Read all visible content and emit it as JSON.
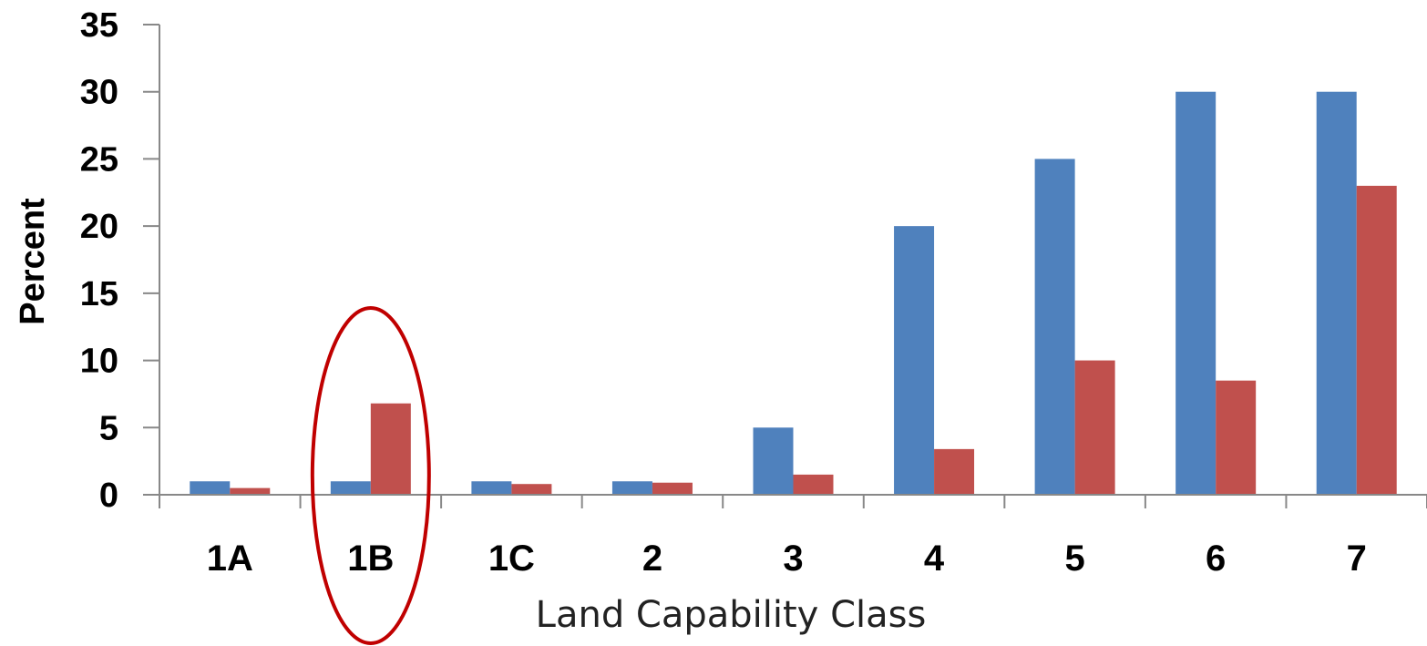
{
  "chart_data": {
    "type": "bar",
    "title": "",
    "xlabel": "Land Capability Class",
    "ylabel": "Percent",
    "categories": [
      "1A",
      "1B",
      "1C",
      "2",
      "3",
      "4",
      "5",
      "6",
      "7"
    ],
    "series": [
      {
        "values": [
          1,
          1,
          1,
          1,
          5,
          20,
          25,
          30,
          30
        ],
        "color": "#4f81bd"
      },
      {
        "values": [
          0.5,
          6.8,
          0.8,
          0.9,
          1.5,
          3.4,
          10,
          8.5,
          23
        ],
        "color": "#c0504d"
      }
    ],
    "ylim": [
      0,
      35
    ],
    "yticks": [
      0,
      5,
      10,
      15,
      20,
      25,
      30,
      35
    ],
    "grid": false,
    "legend": "none",
    "annotation": {
      "type": "ellipse",
      "category": "1B",
      "color": "#c00000"
    }
  }
}
